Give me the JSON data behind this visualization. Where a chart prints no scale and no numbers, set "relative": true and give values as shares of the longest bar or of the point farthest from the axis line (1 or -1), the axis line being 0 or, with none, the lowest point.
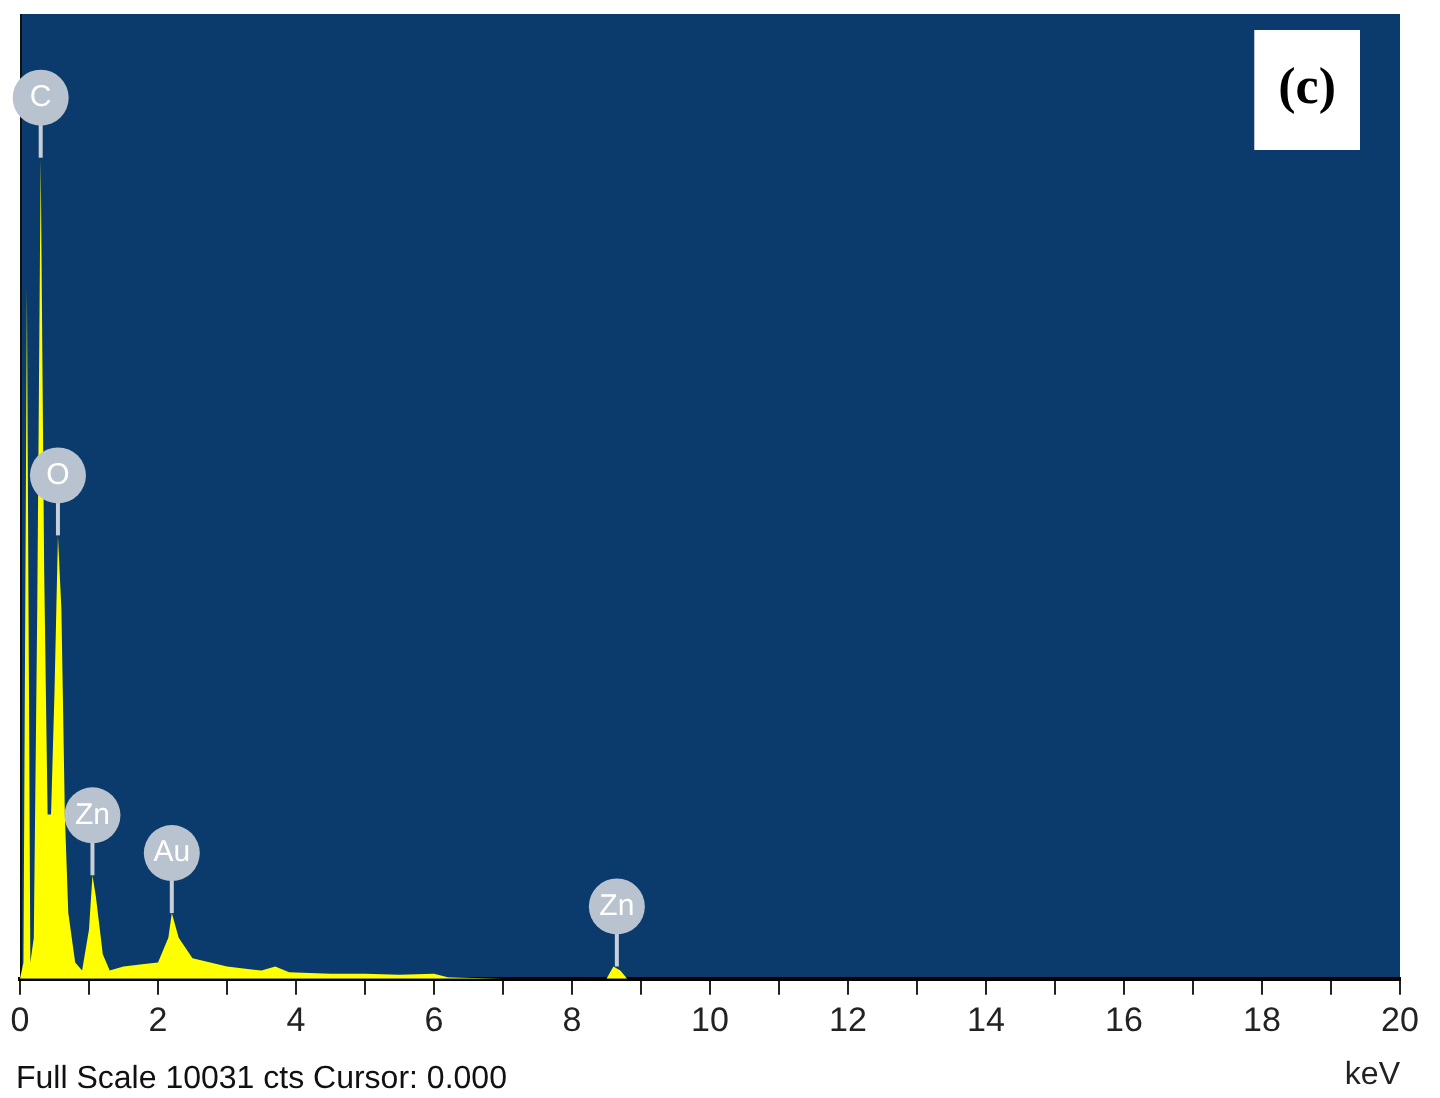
{
  "chart_data": {
    "type": "area",
    "relative": true,
    "xlabel": "keV",
    "legend": false,
    "grid": false,
    "marker": "none",
    "xlim": [
      0,
      20
    ],
    "xticks": [
      0,
      {
        "value": 1,
        "label": null
      },
      2,
      {
        "value": 3,
        "label": null
      },
      4,
      {
        "value": 5,
        "label": null
      },
      6,
      {
        "value": 7,
        "label": null
      },
      8,
      {
        "value": 9,
        "label": null
      },
      10,
      {
        "value": 11,
        "label": null
      },
      12,
      {
        "value": 13,
        "label": null
      },
      14,
      {
        "value": 15,
        "label": null
      },
      16,
      {
        "value": 17,
        "label": null
      },
      18,
      {
        "value": 19,
        "label": null
      },
      20
    ],
    "series": [
      {
        "color": "#ffff00",
        "x": [
          0,
          0.05,
          0.1,
          0.15,
          0.2,
          0.25,
          0.3,
          0.35,
          0.4,
          0.45,
          0.5,
          0.55,
          0.6,
          0.65,
          0.7,
          0.8,
          0.9,
          1.0,
          1.05,
          1.1,
          1.2,
          1.3,
          1.5,
          1.8,
          2.0,
          2.15,
          2.2,
          2.3,
          2.5,
          3.0,
          3.5,
          3.7,
          3.9,
          4.5,
          5.0,
          5.5,
          6.0,
          6.2,
          7.0,
          8.5,
          8.6,
          8.7,
          8.8,
          10,
          20
        ],
        "values": [
          0,
          0.02,
          0.84,
          0.02,
          0.05,
          0.45,
          1.0,
          0.5,
          0.2,
          0.2,
          0.35,
          0.54,
          0.45,
          0.2,
          0.08,
          0.02,
          0.01,
          0.06,
          0.126,
          0.1,
          0.03,
          0.01,
          0.015,
          0.018,
          0.02,
          0.05,
          0.08,
          0.05,
          0.025,
          0.015,
          0.01,
          0.015,
          0.008,
          0.006,
          0.006,
          0.005,
          0.006,
          0.002,
          0,
          0,
          0.015,
          0.01,
          0,
          0,
          0
        ]
      }
    ],
    "annotations": [
      "(c)",
      "Full Scale 10031 cts Cursor: 0.000",
      {
        "text": "C",
        "x": 0.3,
        "y": 1.0
      },
      {
        "text": "O",
        "x": 0.55,
        "y": 0.54
      },
      {
        "text": "Zn",
        "x": 1.05,
        "y": 0.126
      },
      {
        "text": "Au",
        "x": 2.2,
        "y": 0.08
      },
      {
        "text": "Zn",
        "x": 8.65,
        "y": 0.015
      }
    ]
  }
}
